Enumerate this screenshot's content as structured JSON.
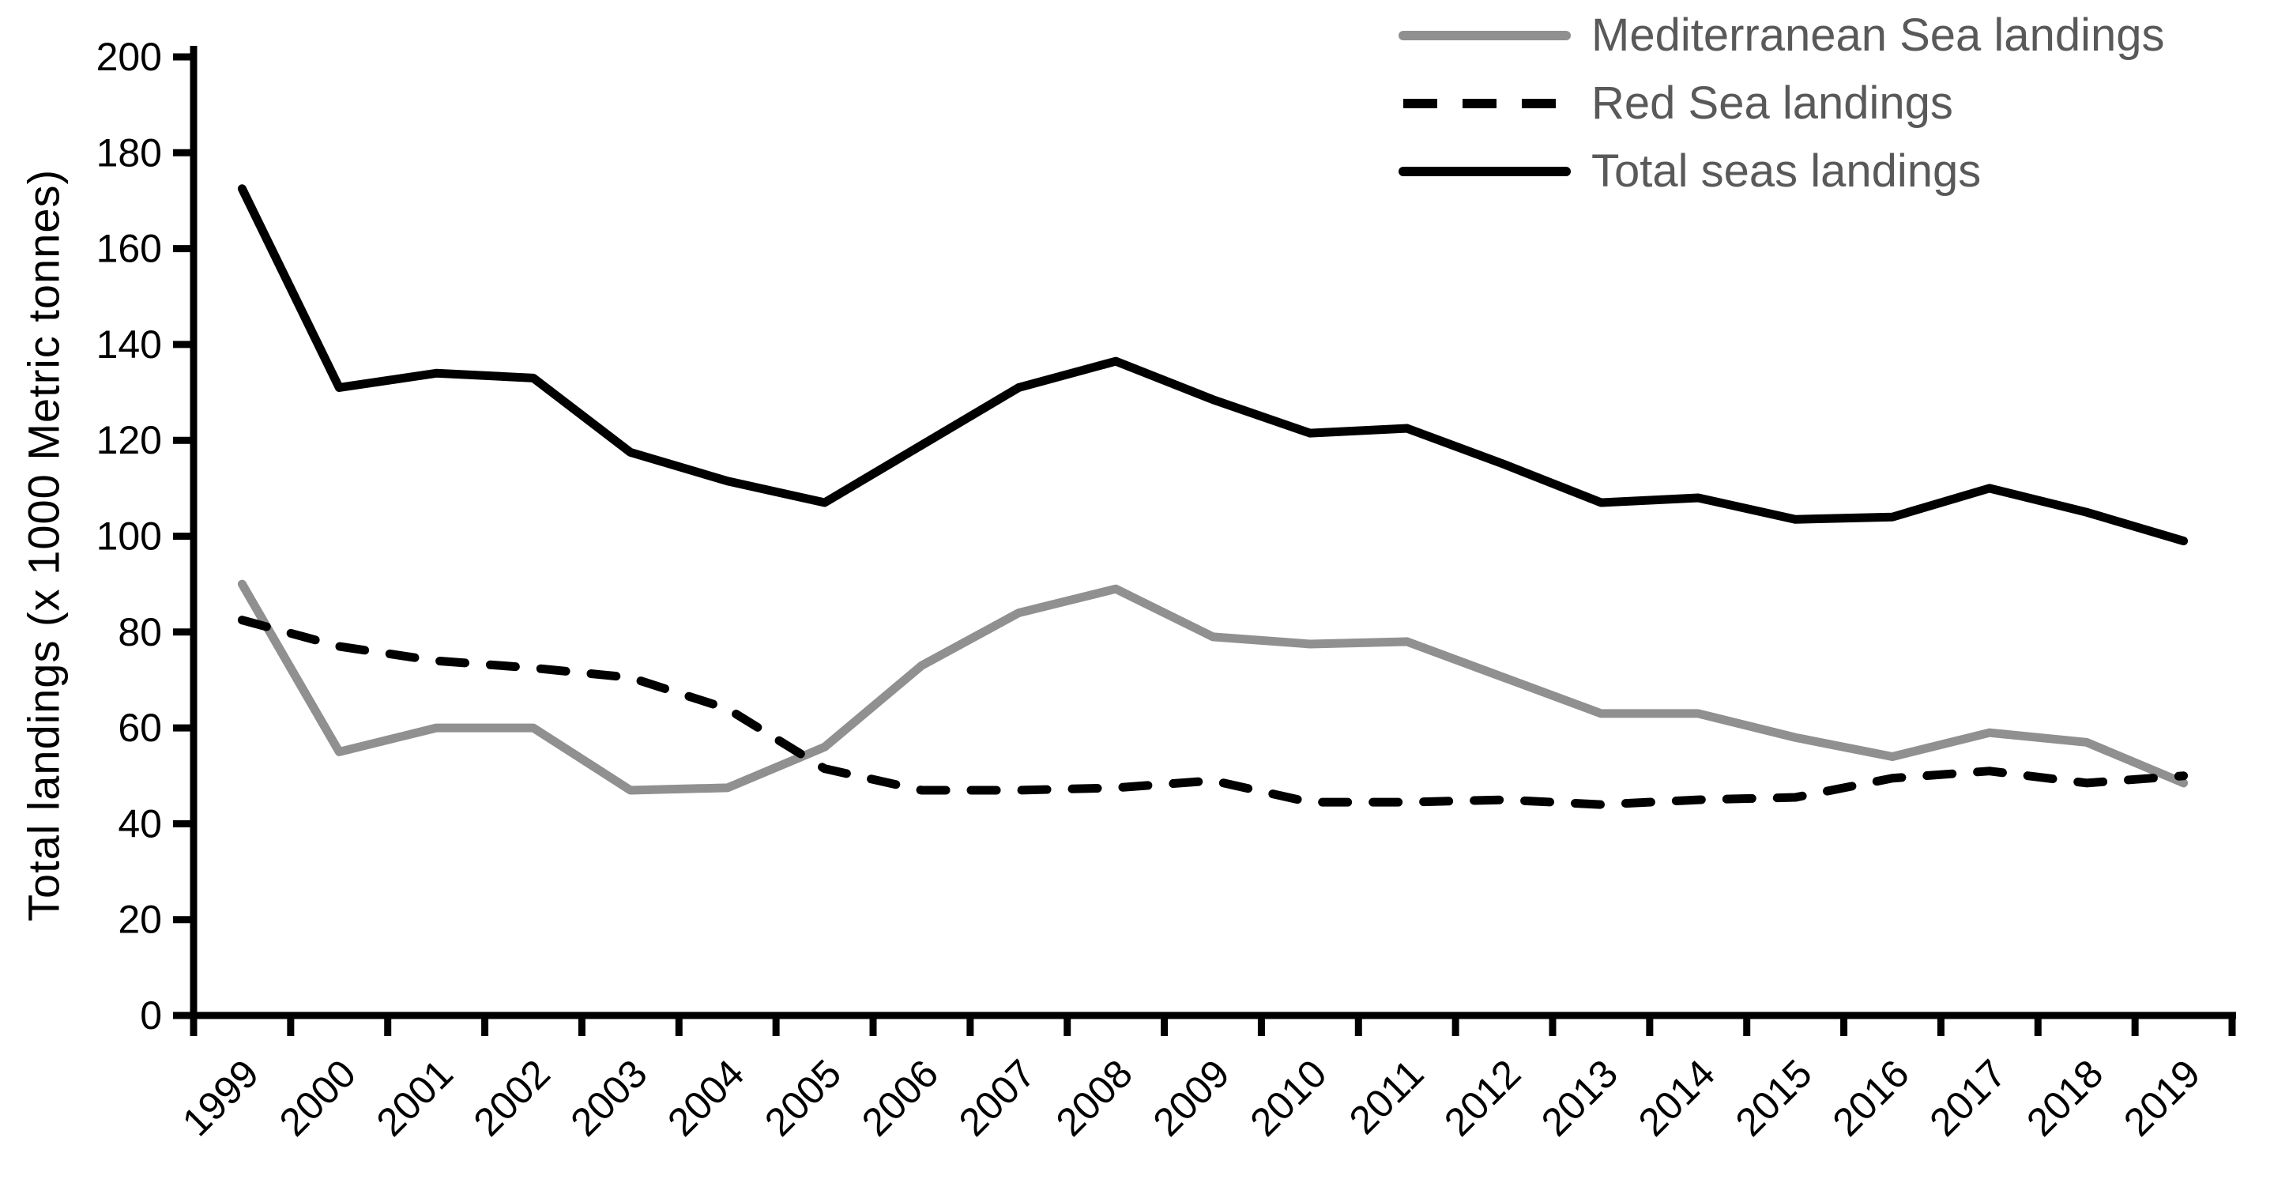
{
  "chart_data": {
    "type": "line",
    "title": "",
    "xlabel": "",
    "ylabel": "Total landings (x 1000 Metric tonnes)",
    "ylim": [
      0,
      200
    ],
    "ytick_interval": 20,
    "grid": false,
    "legend_position": "top-right",
    "categories": [
      "1999",
      "2000",
      "2001",
      "2002",
      "2003",
      "2004",
      "2005",
      "2006",
      "2007",
      "2008",
      "2009",
      "2010",
      "2011",
      "2012",
      "2013",
      "2014",
      "2015",
      "2016",
      "2017",
      "2018",
      "2019"
    ],
    "series": [
      {
        "name": "Mediterranean Sea landings",
        "style": "solid",
        "color": "#909090",
        "values": [
          90,
          55,
          60,
          60,
          47,
          47.5,
          56,
          73,
          84,
          89,
          79,
          77.5,
          78,
          70.5,
          63,
          63,
          58,
          54,
          59,
          57,
          48.5
        ]
      },
      {
        "name": "Red Sea landings",
        "style": "dashed",
        "color": "#000000",
        "values": [
          82.5,
          77,
          74,
          72.5,
          70.5,
          64,
          51.5,
          47,
          47,
          47.5,
          49,
          44.5,
          44.5,
          45,
          44,
          45,
          45.5,
          49.5,
          51,
          48.5,
          50
        ]
      },
      {
        "name": "Total seas landings",
        "style": "solid",
        "color": "#000000",
        "values": [
          172.5,
          131,
          134,
          133,
          117.5,
          111.5,
          107,
          119,
          131,
          136.5,
          128.5,
          121.5,
          122.5,
          115,
          107,
          108,
          103.5,
          104,
          110,
          105,
          99
        ]
      }
    ],
    "axis_color": "#000000",
    "tick_label_color": "#000000",
    "legend_text_color": "#595959"
  }
}
